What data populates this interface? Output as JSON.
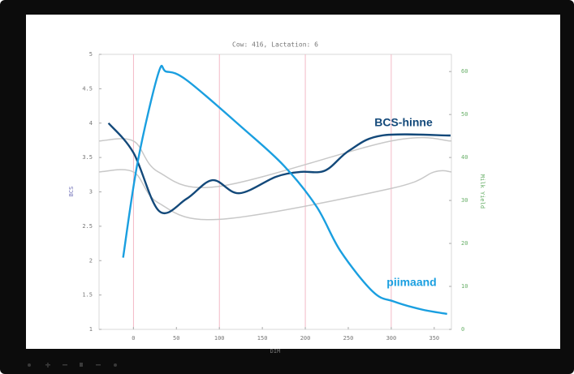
{
  "chart_data": {
    "type": "line",
    "title": "Cow: 416, Lactation: 6",
    "xlabel": "DIM",
    "ylabel": "BCS",
    "y2label": "Milk Yield",
    "xlim": [
      -40,
      370
    ],
    "xticks": [
      0,
      50,
      100,
      150,
      200,
      250,
      300,
      350
    ],
    "xgrid": [
      0,
      100,
      200,
      300
    ],
    "ylim": [
      1,
      5
    ],
    "yticks": [
      1,
      1.5,
      2,
      2.5,
      3,
      3.5,
      4,
      4.5,
      5
    ],
    "y2lim": [
      0,
      64
    ],
    "y2ticks": [
      0,
      10,
      20,
      30,
      40,
      50,
      60
    ],
    "series": [
      {
        "color": "#c8c8c8",
        "x": [
          -40,
          0,
          29,
          100,
          300,
          370
        ],
        "values": [
          3.74,
          3.74,
          3.29,
          3.08,
          3.74,
          3.74
        ]
      },
      {
        "color": "#c8c8c8",
        "x": [
          -40,
          0,
          29,
          100,
          300,
          350,
          370
        ],
        "values": [
          3.29,
          3.29,
          2.84,
          2.6,
          3.05,
          3.29,
          3.29
        ]
      },
      {
        "name": "BCS-hinne",
        "color": "#13497a",
        "x": [
          -29,
          0,
          30,
          62,
          92,
          123,
          166,
          194,
          223,
          251,
          289,
          369
        ],
        "values": [
          4.0,
          3.57,
          2.72,
          2.9,
          3.17,
          2.98,
          3.22,
          3.29,
          3.31,
          3.6,
          3.82,
          3.82
        ]
      },
      {
        "name": "piimaand",
        "color": "#1a9fe0",
        "axis": "y2",
        "x": [
          -12,
          5,
          29,
          38,
          62,
          128,
          175,
          213,
          241,
          279,
          303,
          336,
          365
        ],
        "values": [
          16.7,
          39,
          59.6,
          60,
          58,
          46.7,
          38.1,
          28.6,
          18.2,
          8.7,
          6.5,
          4.6,
          3.6
        ]
      }
    ]
  }
}
